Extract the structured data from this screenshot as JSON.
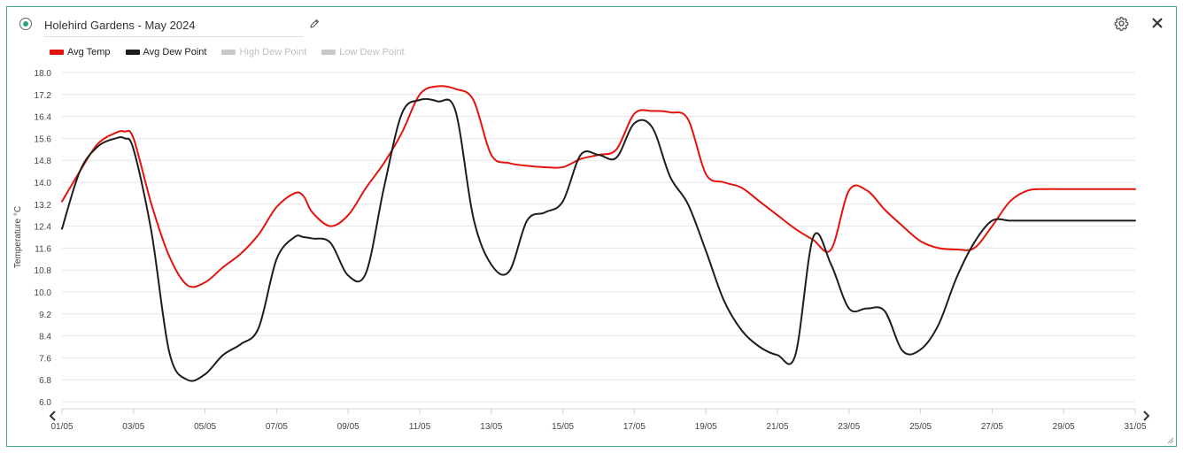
{
  "header": {
    "title": "Holehird Gardens - May 2024",
    "status_icon": "radio-dot-icon",
    "edit_icon": "pencil-icon",
    "settings_icon": "gear-icon",
    "close_icon": "close-icon"
  },
  "colors": {
    "border": "#3aa68c",
    "status": "#2aa37f",
    "avg_temp": "#e4140c",
    "avg_dew_point": "#1d1d1d",
    "disabled": "#c8c8c8",
    "grid": "#e6e6e6",
    "axis_text": "#444444"
  },
  "chart_data": {
    "type": "line",
    "title": "",
    "xlabel": "",
    "ylabel": "Temperature °C",
    "ylim": [
      6.0,
      18.0
    ],
    "yticks": [
      "18.0",
      "17.2",
      "16.4",
      "15.6",
      "14.8",
      "14.0",
      "13.2",
      "12.4",
      "11.6",
      "10.8",
      "10.0",
      "9.2",
      "8.4",
      "7.6",
      "6.8",
      "6.0"
    ],
    "x_tick_labels": [
      "01/05",
      "03/05",
      "05/05",
      "07/05",
      "09/05",
      "11/05",
      "13/05",
      "15/05",
      "17/05",
      "19/05",
      "21/05",
      "23/05",
      "25/05",
      "27/05",
      "29/05",
      "31/05"
    ],
    "grid": "horizontal",
    "legend_position": "top-left",
    "series": [
      {
        "name": "Avg Temp",
        "visible": true,
        "color": "#e4140c",
        "x": [
          1.0,
          1.5,
          2.0,
          2.5,
          2.75,
          3.0,
          3.5,
          4.0,
          4.5,
          5.0,
          5.5,
          6.0,
          6.5,
          7.0,
          7.5,
          7.75,
          8.0,
          8.5,
          9.0,
          9.5,
          10.0,
          10.5,
          11.0,
          11.5,
          12.0,
          12.5,
          13.0,
          13.5,
          14.0,
          14.5,
          15.0,
          15.5,
          16.0,
          16.5,
          17.0,
          17.5,
          18.0,
          18.5,
          19.0,
          19.5,
          20.0,
          20.5,
          21.0,
          21.5,
          22.0,
          22.5,
          23.0,
          23.5,
          24.0,
          24.5,
          25.0,
          25.5,
          26.0,
          26.5,
          27.0,
          27.5,
          28.0,
          28.5,
          29.0,
          29.5,
          30.0,
          30.5,
          31.0
        ],
        "y": [
          13.3,
          14.4,
          15.4,
          15.8,
          15.85,
          15.6,
          13.2,
          11.3,
          10.25,
          10.35,
          10.9,
          11.4,
          12.1,
          13.1,
          13.6,
          13.5,
          12.9,
          12.4,
          12.8,
          13.8,
          14.7,
          15.8,
          17.2,
          17.5,
          17.4,
          17.0,
          15.0,
          14.7,
          14.6,
          14.55,
          14.55,
          14.85,
          15.0,
          15.2,
          16.5,
          16.6,
          16.55,
          16.3,
          14.3,
          14.0,
          13.8,
          13.3,
          12.8,
          12.3,
          11.9,
          11.55,
          13.7,
          13.7,
          13.0,
          12.4,
          11.85,
          11.6,
          11.55,
          11.6,
          12.4,
          13.3,
          13.7,
          13.75,
          13.75,
          13.75,
          13.75,
          13.75,
          13.75
        ],
        "note": ""
      },
      {
        "name": "Avg Dew Point",
        "visible": true,
        "color": "#1d1d1d",
        "x": [
          1.0,
          1.5,
          2.0,
          2.5,
          2.75,
          3.0,
          3.5,
          4.0,
          4.5,
          5.0,
          5.5,
          6.0,
          6.5,
          7.0,
          7.5,
          7.75,
          8.0,
          8.5,
          9.0,
          9.5,
          10.0,
          10.5,
          11.0,
          11.5,
          12.0,
          12.5,
          13.0,
          13.5,
          14.0,
          14.5,
          15.0,
          15.5,
          16.0,
          16.5,
          17.0,
          17.5,
          18.0,
          18.5,
          19.0,
          19.5,
          20.0,
          20.5,
          21.0,
          21.5,
          22.0,
          22.5,
          23.0,
          23.5,
          24.0,
          24.5,
          25.0,
          25.5,
          26.0,
          26.5,
          27.0,
          27.5,
          28.0,
          28.5,
          29.0,
          29.5,
          30.0,
          30.5,
          31.0
        ],
        "y": [
          12.3,
          14.4,
          15.3,
          15.6,
          15.6,
          15.2,
          12.2,
          7.8,
          6.8,
          7.0,
          7.7,
          8.1,
          8.7,
          11.2,
          12.0,
          12.0,
          11.95,
          11.8,
          10.6,
          10.7,
          13.8,
          16.5,
          17.0,
          16.95,
          16.6,
          12.7,
          11.0,
          10.75,
          12.6,
          12.9,
          13.3,
          15.0,
          15.0,
          14.9,
          16.15,
          16.0,
          14.2,
          13.2,
          11.5,
          9.7,
          8.6,
          8.0,
          7.7,
          7.7,
          12.0,
          11.0,
          9.4,
          9.4,
          9.3,
          7.85,
          7.9,
          8.8,
          10.5,
          11.8,
          12.6,
          12.6,
          12.6,
          12.6,
          12.6,
          12.6,
          12.6,
          12.6,
          12.6
        ],
        "note": ""
      },
      {
        "name": "High Dew Point",
        "visible": false,
        "color": "#c8c8c8"
      },
      {
        "name": "Low Dew Point",
        "visible": false,
        "color": "#c8c8c8"
      }
    ]
  },
  "legend": {
    "items": [
      {
        "label": "Avg Temp",
        "color": "#e4140c",
        "active": true
      },
      {
        "label": "Avg Dew Point",
        "color": "#1d1d1d",
        "active": true
      },
      {
        "label": "High Dew Point",
        "color": "#c8c8c8",
        "active": false
      },
      {
        "label": "Low Dew Point",
        "color": "#c8c8c8",
        "active": false
      }
    ]
  },
  "navigation": {
    "prev_icon": "chevron-left-icon",
    "next_icon": "chevron-right-icon",
    "resize_icon": "resize-grip-icon"
  }
}
